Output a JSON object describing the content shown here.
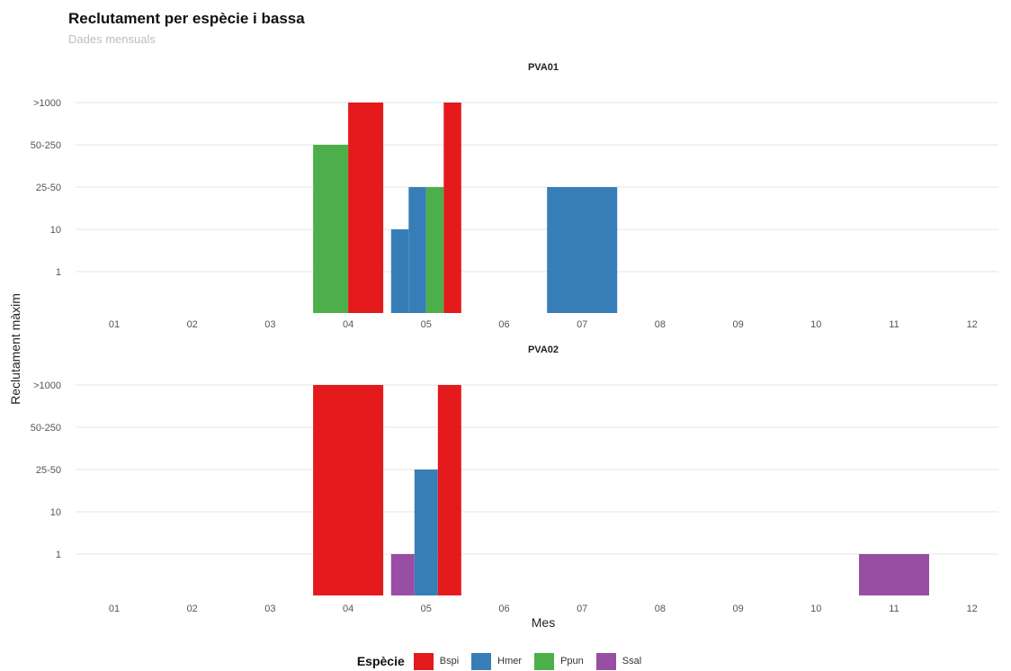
{
  "title": "Reclutament per espècie i bassa",
  "subtitle": "Dades mensuals",
  "chart_data": {
    "type": "bar",
    "xlabel": "Mes",
    "ylabel": "Reclutament màxim",
    "categories": [
      "01",
      "02",
      "03",
      "04",
      "05",
      "06",
      "07",
      "08",
      "09",
      "10",
      "11",
      "12"
    ],
    "y_levels": [
      "1",
      "10",
      "25-50",
      "50-250",
      ">1000"
    ],
    "grid": true,
    "legend_position": "bottom",
    "legend": {
      "title": "Espècie",
      "items": [
        {
          "key": "Bspi",
          "label": "Bspi",
          "color": "#e41a1c"
        },
        {
          "key": "Hmer",
          "label": "Hmer",
          "color": "#377eb8"
        },
        {
          "key": "Ppun",
          "label": "Ppun",
          "color": "#4daf4a"
        },
        {
          "key": "Ssal",
          "label": "Ssal",
          "color": "#984ea3"
        }
      ]
    },
    "panels": [
      {
        "name": "PVA01",
        "groups": [
          {
            "month": "04",
            "bars": [
              {
                "species": "Ppun",
                "level": "50-250"
              },
              {
                "species": "Bspi",
                "level": ">1000"
              }
            ]
          },
          {
            "month": "05",
            "bars": [
              {
                "species": "Hmer",
                "level": "10"
              },
              {
                "species": "Hmer",
                "level": "25-50"
              },
              {
                "species": "Ppun",
                "level": "25-50"
              },
              {
                "species": "Bspi",
                "level": ">1000"
              }
            ]
          },
          {
            "month": "07",
            "bars": [
              {
                "species": "Hmer",
                "level": "25-50"
              }
            ]
          }
        ]
      },
      {
        "name": "PVA02",
        "groups": [
          {
            "month": "04",
            "bars": [
              {
                "species": "Bspi",
                "level": ">1000"
              }
            ]
          },
          {
            "month": "05",
            "bars": [
              {
                "species": "Ssal",
                "level": "1"
              },
              {
                "species": "Hmer",
                "level": "25-50"
              },
              {
                "species": "Bspi",
                "level": ">1000"
              }
            ]
          },
          {
            "month": "11",
            "bars": [
              {
                "species": "Ssal",
                "level": "1"
              }
            ]
          }
        ]
      }
    ]
  }
}
